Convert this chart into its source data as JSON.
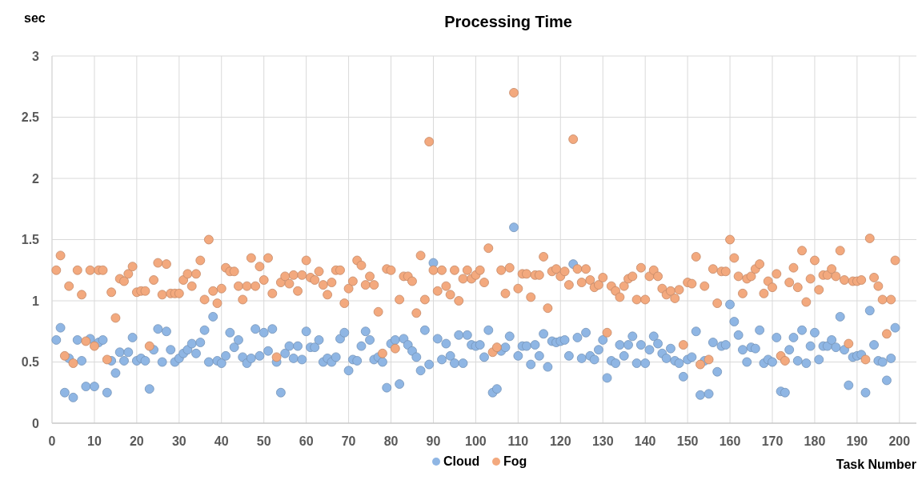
{
  "chart_data": {
    "type": "scatter",
    "title": "Processing Time",
    "xlabel": "Task Number",
    "ylabel": "sec",
    "x": [
      1,
      2,
      3,
      4,
      5,
      6,
      7,
      8,
      9,
      10,
      11,
      12,
      13,
      14,
      15,
      16,
      17,
      18,
      19,
      20,
      21,
      22,
      23,
      24,
      25,
      26,
      27,
      28,
      29,
      30,
      31,
      32,
      33,
      34,
      35,
      36,
      37,
      38,
      39,
      40,
      41,
      42,
      43,
      44,
      45,
      46,
      47,
      48,
      49,
      50,
      51,
      52,
      53,
      54,
      55,
      56,
      57,
      58,
      59,
      60,
      61,
      62,
      63,
      64,
      65,
      66,
      67,
      68,
      69,
      70,
      71,
      72,
      73,
      74,
      75,
      76,
      77,
      78,
      79,
      80,
      81,
      82,
      83,
      84,
      85,
      86,
      87,
      88,
      89,
      90,
      91,
      92,
      93,
      94,
      95,
      96,
      97,
      98,
      99,
      100,
      101,
      102,
      103,
      104,
      105,
      106,
      107,
      108,
      109,
      110,
      111,
      112,
      113,
      114,
      115,
      116,
      117,
      118,
      119,
      120,
      121,
      122,
      123,
      124,
      125,
      126,
      127,
      128,
      129,
      130,
      131,
      132,
      133,
      134,
      135,
      136,
      137,
      138,
      139,
      140,
      141,
      142,
      143,
      144,
      145,
      146,
      147,
      148,
      149,
      150,
      151,
      152,
      153,
      154,
      155,
      156,
      157,
      158,
      159,
      160,
      161,
      162,
      163,
      164,
      165,
      166,
      167,
      168,
      169,
      170,
      171,
      172,
      173,
      174,
      175,
      176,
      177,
      178,
      179,
      180,
      181,
      182,
      183,
      184,
      185,
      186,
      187,
      188,
      189,
      190,
      191,
      192,
      193,
      194,
      195,
      196,
      197,
      198,
      199
    ],
    "series": [
      {
        "name": "Cloud",
        "color": "#8fb6e4",
        "values": [
          0.68,
          0.78,
          0.25,
          0.53,
          0.21,
          0.68,
          0.51,
          0.3,
          0.69,
          0.3,
          0.66,
          0.68,
          0.25,
          0.51,
          0.41,
          0.58,
          0.51,
          0.58,
          0.7,
          0.51,
          0.53,
          0.51,
          0.28,
          0.6,
          0.77,
          0.5,
          0.75,
          0.6,
          0.5,
          0.53,
          0.57,
          0.6,
          0.65,
          0.57,
          0.66,
          0.76,
          0.5,
          0.87,
          0.51,
          0.49,
          0.55,
          0.74,
          0.62,
          0.68,
          0.54,
          0.49,
          0.53,
          0.77,
          0.55,
          0.74,
          0.59,
          0.77,
          0.5,
          0.25,
          0.57,
          0.63,
          0.53,
          0.63,
          0.52,
          0.75,
          0.62,
          0.62,
          0.68,
          0.5,
          0.53,
          0.5,
          0.54,
          0.69,
          0.74,
          0.43,
          0.52,
          0.51,
          0.63,
          0.75,
          0.68,
          0.52,
          0.54,
          0.5,
          0.29,
          0.65,
          0.68,
          0.32,
          0.69,
          0.64,
          0.59,
          0.54,
          0.43,
          0.76,
          0.48,
          1.31,
          0.69,
          0.52,
          0.65,
          0.55,
          0.49,
          0.72,
          0.49,
          0.72,
          0.64,
          0.63,
          0.64,
          0.54,
          0.76,
          0.25,
          0.28,
          0.59,
          0.62,
          0.71,
          1.6,
          0.55,
          0.63,
          0.63,
          0.48,
          0.64,
          0.55,
          0.73,
          0.46,
          0.67,
          0.66,
          0.67,
          0.68,
          0.55,
          1.3,
          0.7,
          0.53,
          0.74,
          0.55,
          0.52,
          0.6,
          0.68,
          0.37,
          0.51,
          0.49,
          0.64,
          0.55,
          0.64,
          0.71,
          0.49,
          0.64,
          0.49,
          0.6,
          0.71,
          0.65,
          0.57,
          0.53,
          0.61,
          0.51,
          0.49,
          0.38,
          0.52,
          0.54,
          0.75,
          0.23,
          0.51,
          0.24,
          0.66,
          0.42,
          0.63,
          0.64,
          0.97,
          0.83,
          0.72,
          0.6,
          0.5,
          0.62,
          0.61,
          0.76,
          0.49,
          0.52,
          0.5,
          0.7,
          0.26,
          0.25,
          0.6,
          0.7,
          0.51,
          0.76,
          0.49,
          0.63,
          0.74,
          0.52,
          0.63,
          0.63,
          0.68,
          0.62,
          0.87,
          0.6,
          0.31,
          0.54,
          0.55,
          0.56,
          0.25,
          0.92,
          0.64,
          0.51,
          0.5,
          0.35,
          0.53,
          0.78
        ]
      },
      {
        "name": "Fog",
        "color": "#f3a97e",
        "values": [
          1.25,
          1.37,
          0.55,
          1.12,
          0.49,
          1.25,
          1.05,
          0.67,
          1.25,
          0.63,
          1.25,
          1.25,
          0.52,
          1.07,
          0.86,
          1.18,
          1.16,
          1.22,
          1.28,
          1.07,
          1.08,
          1.08,
          0.63,
          1.17,
          1.31,
          1.05,
          1.3,
          1.06,
          1.06,
          1.06,
          1.17,
          1.22,
          1.12,
          1.22,
          1.33,
          1.01,
          1.5,
          1.08,
          0.98,
          1.1,
          1.27,
          1.24,
          1.24,
          1.12,
          1.01,
          1.12,
          1.35,
          1.12,
          1.28,
          1.17,
          1.35,
          1.06,
          0.54,
          1.15,
          1.2,
          1.14,
          1.21,
          1.08,
          1.21,
          1.33,
          1.19,
          1.17,
          1.24,
          1.13,
          1.05,
          1.15,
          1.25,
          1.25,
          0.98,
          1.1,
          1.16,
          1.33,
          1.29,
          1.13,
          1.2,
          1.13,
          0.91,
          0.57,
          1.26,
          1.25,
          0.61,
          1.01,
          1.2,
          1.2,
          1.16,
          0.9,
          1.37,
          1.01,
          2.3,
          1.25,
          1.08,
          1.25,
          1.12,
          1.05,
          1.25,
          1.0,
          1.18,
          1.25,
          1.18,
          1.21,
          1.25,
          1.15,
          1.43,
          0.58,
          0.62,
          1.25,
          1.06,
          1.27,
          2.7,
          1.1,
          1.22,
          1.22,
          1.03,
          1.21,
          1.21,
          1.36,
          0.94,
          1.24,
          1.26,
          1.2,
          1.24,
          1.13,
          2.32,
          1.26,
          1.15,
          1.26,
          1.17,
          1.11,
          1.13,
          1.19,
          0.74,
          1.12,
          1.08,
          1.03,
          1.12,
          1.18,
          1.2,
          1.01,
          1.27,
          1.01,
          1.2,
          1.25,
          1.2,
          1.1,
          1.05,
          1.08,
          1.02,
          1.09,
          0.64,
          1.15,
          1.14,
          1.36,
          0.48,
          1.12,
          0.52,
          1.26,
          0.98,
          1.24,
          1.24,
          1.5,
          1.35,
          1.2,
          1.06,
          1.18,
          1.2,
          1.26,
          1.3,
          1.06,
          1.16,
          1.11,
          1.22,
          0.55,
          0.51,
          1.15,
          1.27,
          1.11,
          1.41,
          0.99,
          1.18,
          1.33,
          1.09,
          1.21,
          1.21,
          1.26,
          1.2,
          1.41,
          1.17,
          0.65,
          1.16,
          1.16,
          1.17,
          0.52,
          1.51,
          1.19,
          1.12,
          1.01,
          0.73,
          1.01,
          1.33
        ]
      }
    ],
    "xlim": [
      0,
      204
    ],
    "xticks": [
      0,
      10,
      20,
      30,
      40,
      50,
      60,
      70,
      80,
      90,
      100,
      110,
      120,
      130,
      140,
      150,
      160,
      170,
      180,
      190,
      200
    ],
    "ylim": [
      0,
      3
    ],
    "yticks": [
      0,
      0.5,
      1,
      1.5,
      2,
      2.5,
      3
    ],
    "grid": true,
    "legend": "bottom",
    "marker": "circle"
  }
}
